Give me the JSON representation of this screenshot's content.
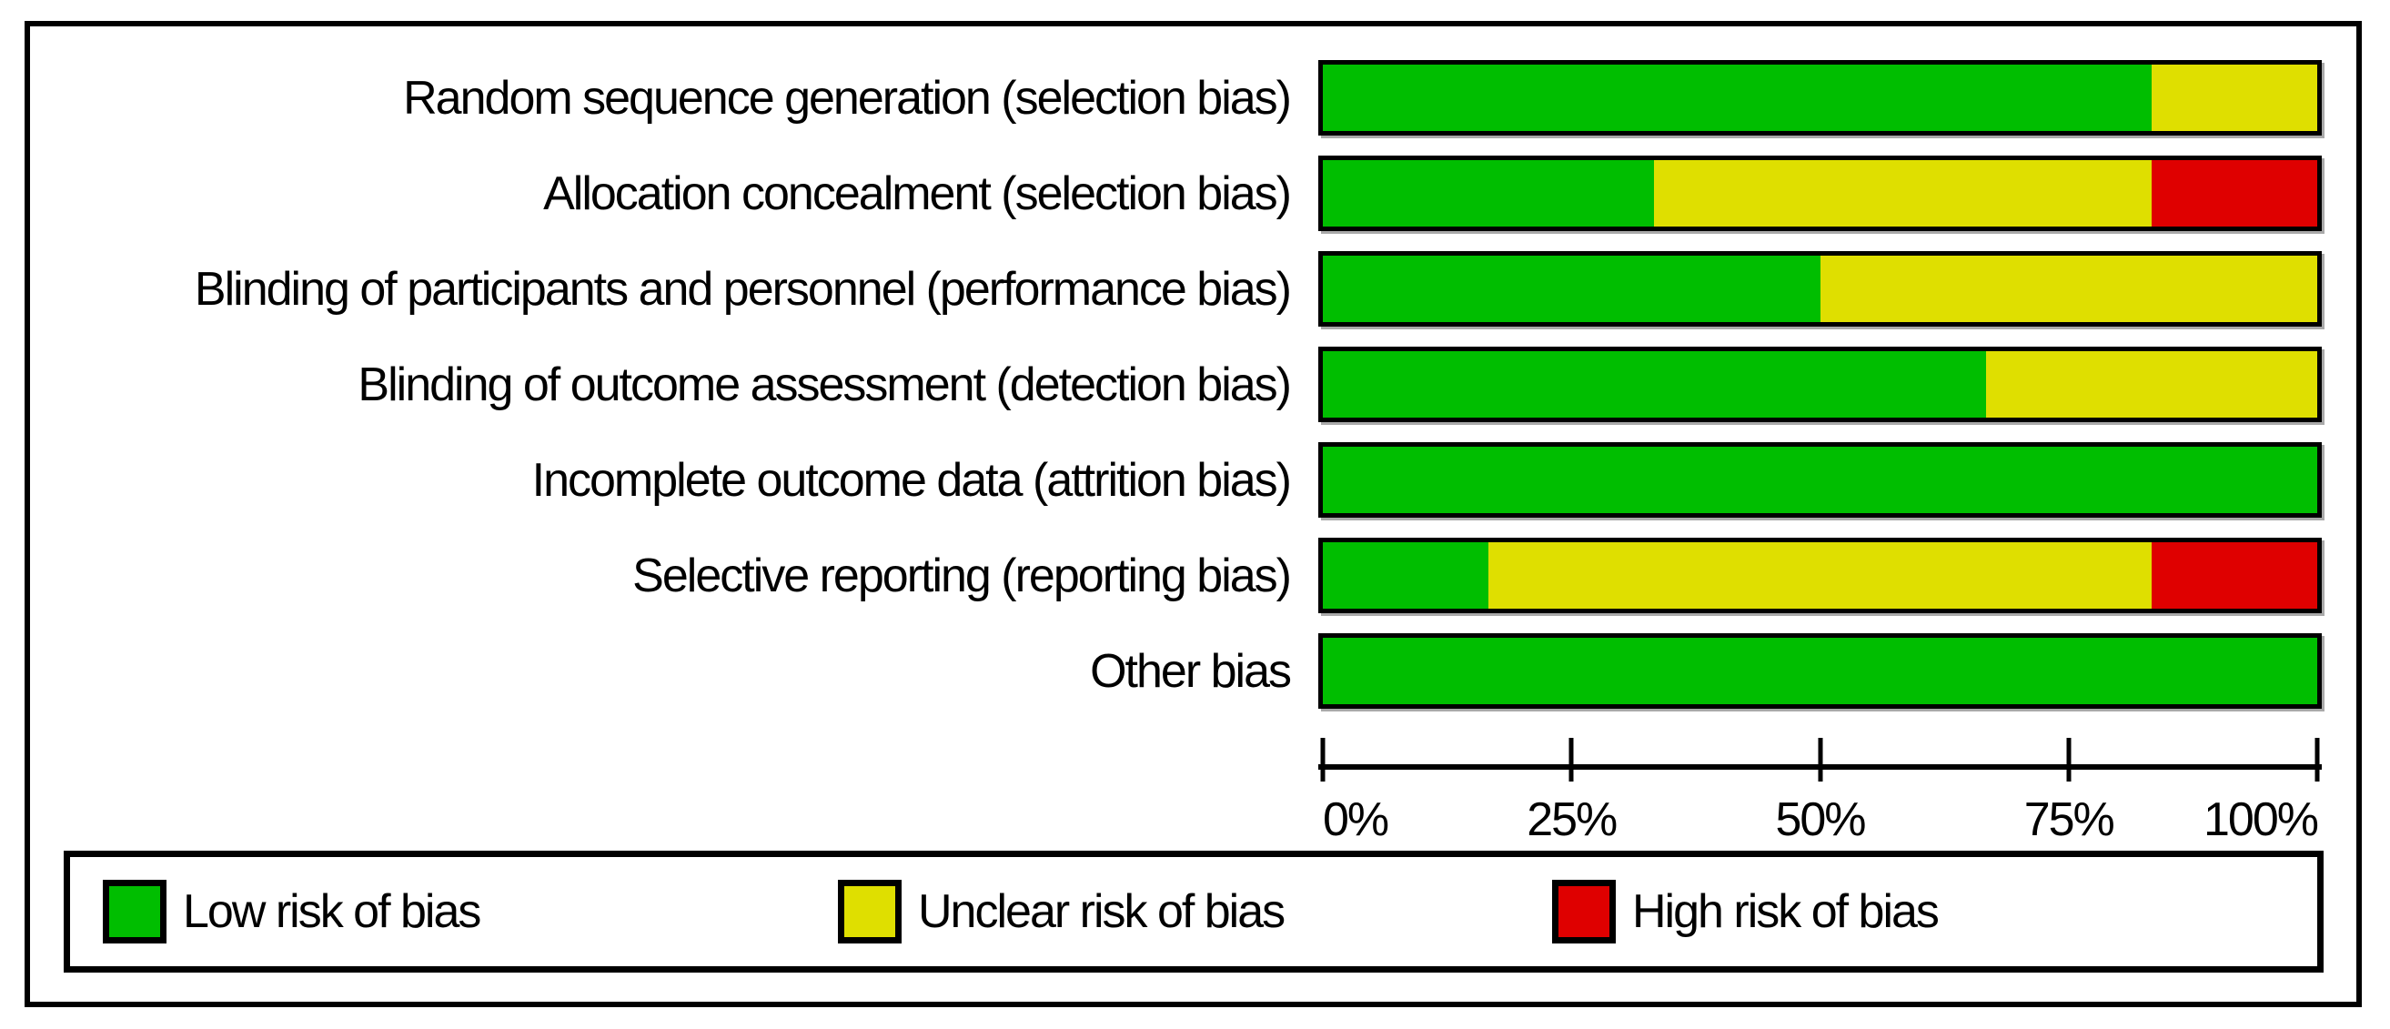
{
  "figure": {
    "background": "#ffffff",
    "border_color": "#000000"
  },
  "chart_data": {
    "type": "bar",
    "orientation": "horizontal",
    "stacked": true,
    "unit": "percent",
    "categories": [
      "Random sequence generation (selection bias)",
      "Allocation concealment (selection bias)",
      "Blinding of participants and personnel (performance bias)",
      "Blinding of outcome assessment (detection bias)",
      "Incomplete outcome data (attrition bias)",
      "Selective reporting (reporting bias)",
      "Other bias"
    ],
    "series": [
      {
        "key": "low",
        "name": "Low risk of bias",
        "color": "#00be00",
        "values": [
          83.33,
          33.33,
          50,
          66.67,
          100,
          16.67,
          100
        ]
      },
      {
        "key": "unclear",
        "name": "Unclear risk of bias",
        "color": "#dfdf00",
        "values": [
          16.67,
          50,
          50,
          33.33,
          0,
          66.67,
          0
        ]
      },
      {
        "key": "high",
        "name": "High risk of bias",
        "color": "#df0000",
        "values": [
          0,
          16.67,
          0,
          0,
          0,
          16.67,
          0
        ]
      }
    ],
    "xlabel": "",
    "ylabel": "",
    "xlim": [
      0,
      100
    ],
    "x_ticks": [
      "0%",
      "25%",
      "50%",
      "75%",
      "100%"
    ],
    "grid": false,
    "legend_position": "bottom"
  },
  "legend": {
    "items": [
      {
        "label": "Low risk of bias",
        "color": "#00be00"
      },
      {
        "label": "Unclear risk of bias",
        "color": "#dfdf00"
      },
      {
        "label": "High risk of bias",
        "color": "#df0000"
      }
    ]
  }
}
